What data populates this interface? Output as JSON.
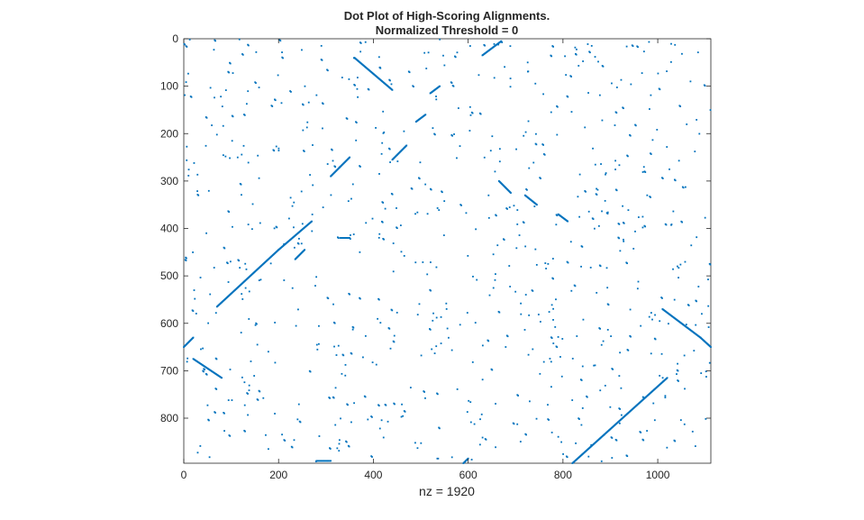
{
  "chart_data": {
    "type": "scatter",
    "title": "Dot Plot of High-Scoring Alignments.",
    "subtitle": "Normalized Threshold = 0",
    "xlabel": "nz = 1920",
    "ylabel": "",
    "xlim": [
      0,
      1112
    ],
    "ylim": [
      0,
      895
    ],
    "y_reversed": true,
    "x_ticks": [
      0,
      200,
      400,
      600,
      800,
      1000
    ],
    "y_ticks": [
      0,
      100,
      200,
      300,
      400,
      500,
      600,
      700,
      800
    ],
    "grid": false,
    "legend": "none",
    "marker_color": "#0072BD",
    "segments": [
      {
        "from": [
          70,
          565
        ],
        "to": [
          200,
          445
        ]
      },
      {
        "from": [
          200,
          445
        ],
        "to": [
          270,
          385
        ]
      },
      {
        "from": [
          235,
          465
        ],
        "to": [
          255,
          445
        ]
      },
      {
        "from": [
          360,
          40
        ],
        "to": [
          440,
          108
        ]
      },
      {
        "from": [
          310,
          290
        ],
        "to": [
          350,
          250
        ]
      },
      {
        "from": [
          440,
          255
        ],
        "to": [
          470,
          225
        ]
      },
      {
        "from": [
          630,
          35
        ],
        "to": [
          670,
          5
        ]
      },
      {
        "from": [
          665,
          300
        ],
        "to": [
          690,
          325
        ]
      },
      {
        "from": [
          720,
          330
        ],
        "to": [
          745,
          350
        ]
      },
      {
        "from": [
          790,
          370
        ],
        "to": [
          810,
          385
        ]
      },
      {
        "from": [
          20,
          675
        ],
        "to": [
          80,
          715
        ]
      },
      {
        "from": [
          0,
          650
        ],
        "to": [
          20,
          630
        ]
      },
      {
        "from": [
          1010,
          570
        ],
        "to": [
          1090,
          630
        ]
      },
      {
        "from": [
          1090,
          630
        ],
        "to": [
          1112,
          650
        ]
      },
      {
        "from": [
          820,
          895
        ],
        "to": [
          1020,
          715
        ]
      },
      {
        "from": [
          280,
          890
        ],
        "to": [
          310,
          890
        ]
      },
      {
        "from": [
          330,
          420
        ],
        "to": [
          350,
          420
        ]
      },
      {
        "from": [
          490,
          175
        ],
        "to": [
          510,
          160
        ]
      },
      {
        "from": [
          520,
          115
        ],
        "to": [
          540,
          100
        ]
      },
      {
        "from": [
          590,
          895
        ],
        "to": [
          600,
          885
        ]
      }
    ],
    "scatter_count": 760
  }
}
